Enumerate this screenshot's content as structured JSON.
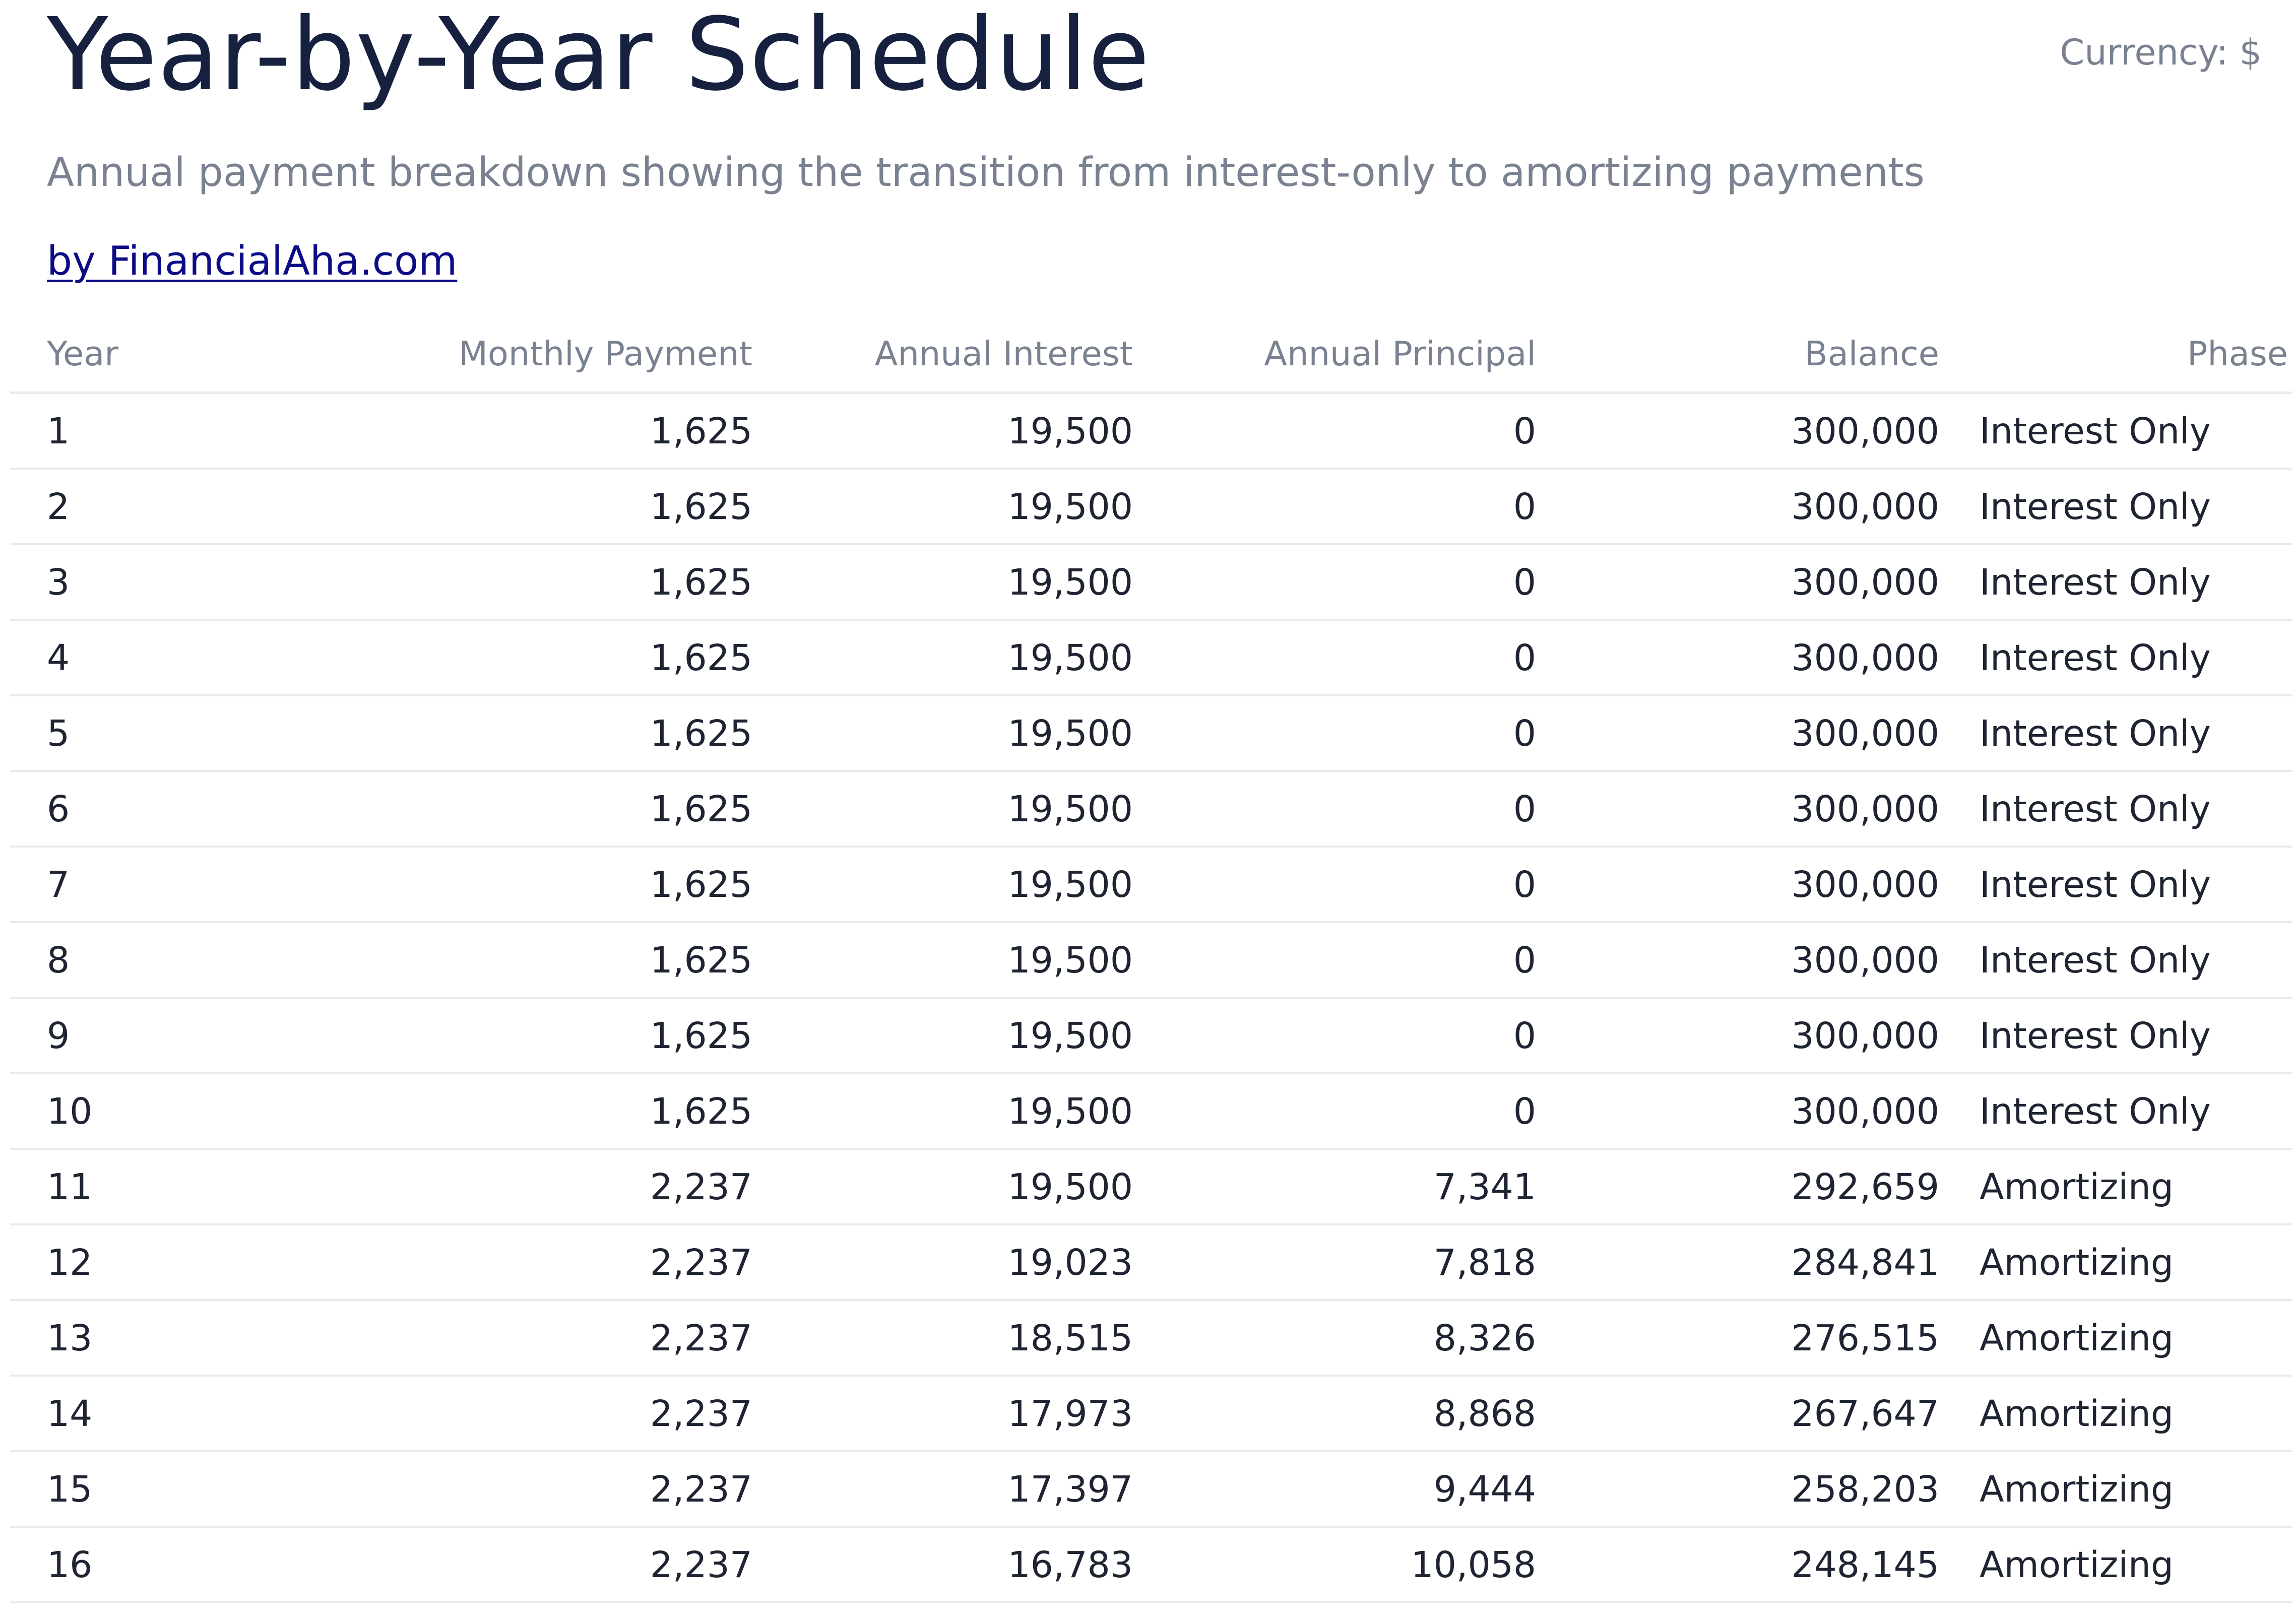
{
  "header": {
    "title": "Year-by-Year Schedule",
    "currency_label": "Currency: $",
    "subtitle": "Annual payment breakdown showing the transition from interest-only to amortizing payments",
    "brand_link": "by FinancialAha.com"
  },
  "table": {
    "columns": [
      "Year",
      "Monthly Payment",
      "Annual Interest",
      "Annual Principal",
      "Balance",
      "Phase"
    ],
    "rows": [
      [
        "1",
        "1,625",
        "19,500",
        "0",
        "300,000",
        "Interest Only"
      ],
      [
        "2",
        "1,625",
        "19,500",
        "0",
        "300,000",
        "Interest Only"
      ],
      [
        "3",
        "1,625",
        "19,500",
        "0",
        "300,000",
        "Interest Only"
      ],
      [
        "4",
        "1,625",
        "19,500",
        "0",
        "300,000",
        "Interest Only"
      ],
      [
        "5",
        "1,625",
        "19,500",
        "0",
        "300,000",
        "Interest Only"
      ],
      [
        "6",
        "1,625",
        "19,500",
        "0",
        "300,000",
        "Interest Only"
      ],
      [
        "7",
        "1,625",
        "19,500",
        "0",
        "300,000",
        "Interest Only"
      ],
      [
        "8",
        "1,625",
        "19,500",
        "0",
        "300,000",
        "Interest Only"
      ],
      [
        "9",
        "1,625",
        "19,500",
        "0",
        "300,000",
        "Interest Only"
      ],
      [
        "10",
        "1,625",
        "19,500",
        "0",
        "300,000",
        "Interest Only"
      ],
      [
        "11",
        "2,237",
        "19,500",
        "7,341",
        "292,659",
        "Amortizing"
      ],
      [
        "12",
        "2,237",
        "19,023",
        "7,818",
        "284,841",
        "Amortizing"
      ],
      [
        "13",
        "2,237",
        "18,515",
        "8,326",
        "276,515",
        "Amortizing"
      ],
      [
        "14",
        "2,237",
        "17,973",
        "8,868",
        "267,647",
        "Amortizing"
      ],
      [
        "15",
        "2,237",
        "17,397",
        "9,444",
        "258,203",
        "Amortizing"
      ],
      [
        "16",
        "2,237",
        "16,783",
        "10,058",
        "248,145",
        "Amortizing"
      ]
    ]
  },
  "colors": {
    "title": "#16213f",
    "muted_text": "#7a8191",
    "body_text": "#1f2433",
    "link": "#0c0c86",
    "row_divider": "#e8eaee"
  }
}
